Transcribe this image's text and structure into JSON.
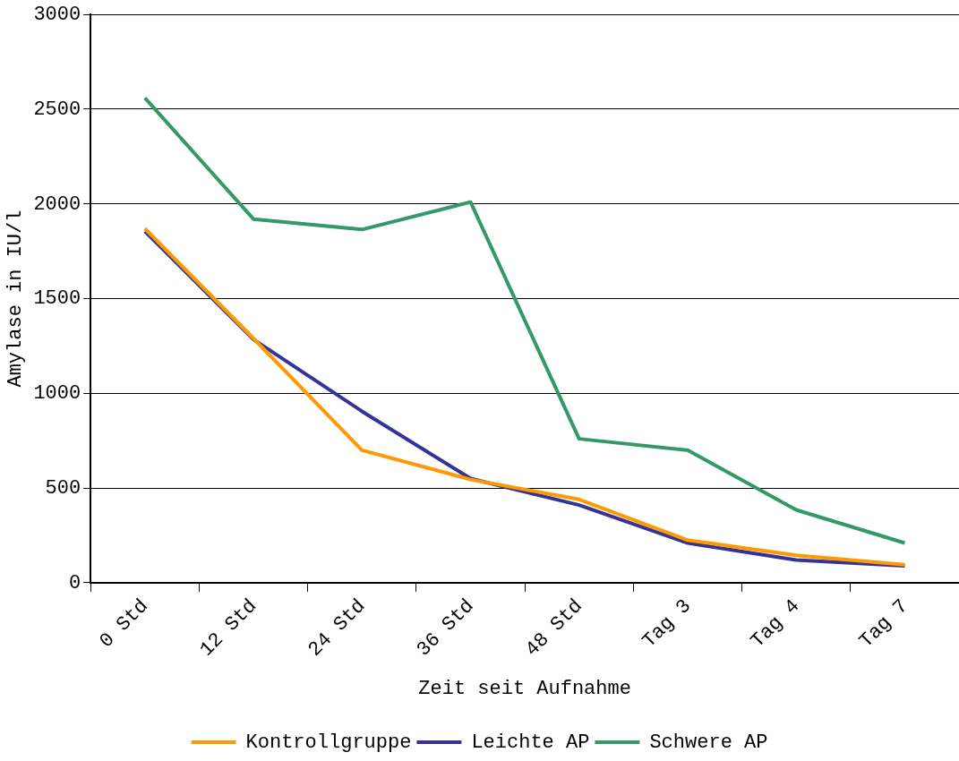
{
  "chart_data": {
    "type": "line",
    "xlabel": "Zeit seit Aufnahme",
    "ylabel": "Amylase in IU/l",
    "categories": [
      "0 Std",
      "12 Std",
      "24 Std",
      "36 Std",
      "48 Std",
      "Tag 3",
      "Tag 4",
      "Tag 7"
    ],
    "series": [
      {
        "name": "Kontrollgruppe",
        "color": "#ff9900",
        "values": [
          1870,
          1290,
          700,
          545,
          440,
          225,
          145,
          95
        ]
      },
      {
        "name": "Leichte AP",
        "color": "#333399",
        "values": [
          1855,
          1285,
          905,
          550,
          410,
          210,
          120,
          90
        ]
      },
      {
        "name": "Schwere AP",
        "color": "#339966",
        "values": [
          2560,
          1920,
          1865,
          2010,
          760,
          700,
          385,
          210
        ]
      }
    ],
    "ylim": [
      0,
      3000
    ],
    "yticks": [
      0,
      500,
      1000,
      1500,
      2000,
      2500,
      3000
    ],
    "grid": "y",
    "legend": "bottom",
    "marker": "none",
    "line_style": "solid"
  }
}
